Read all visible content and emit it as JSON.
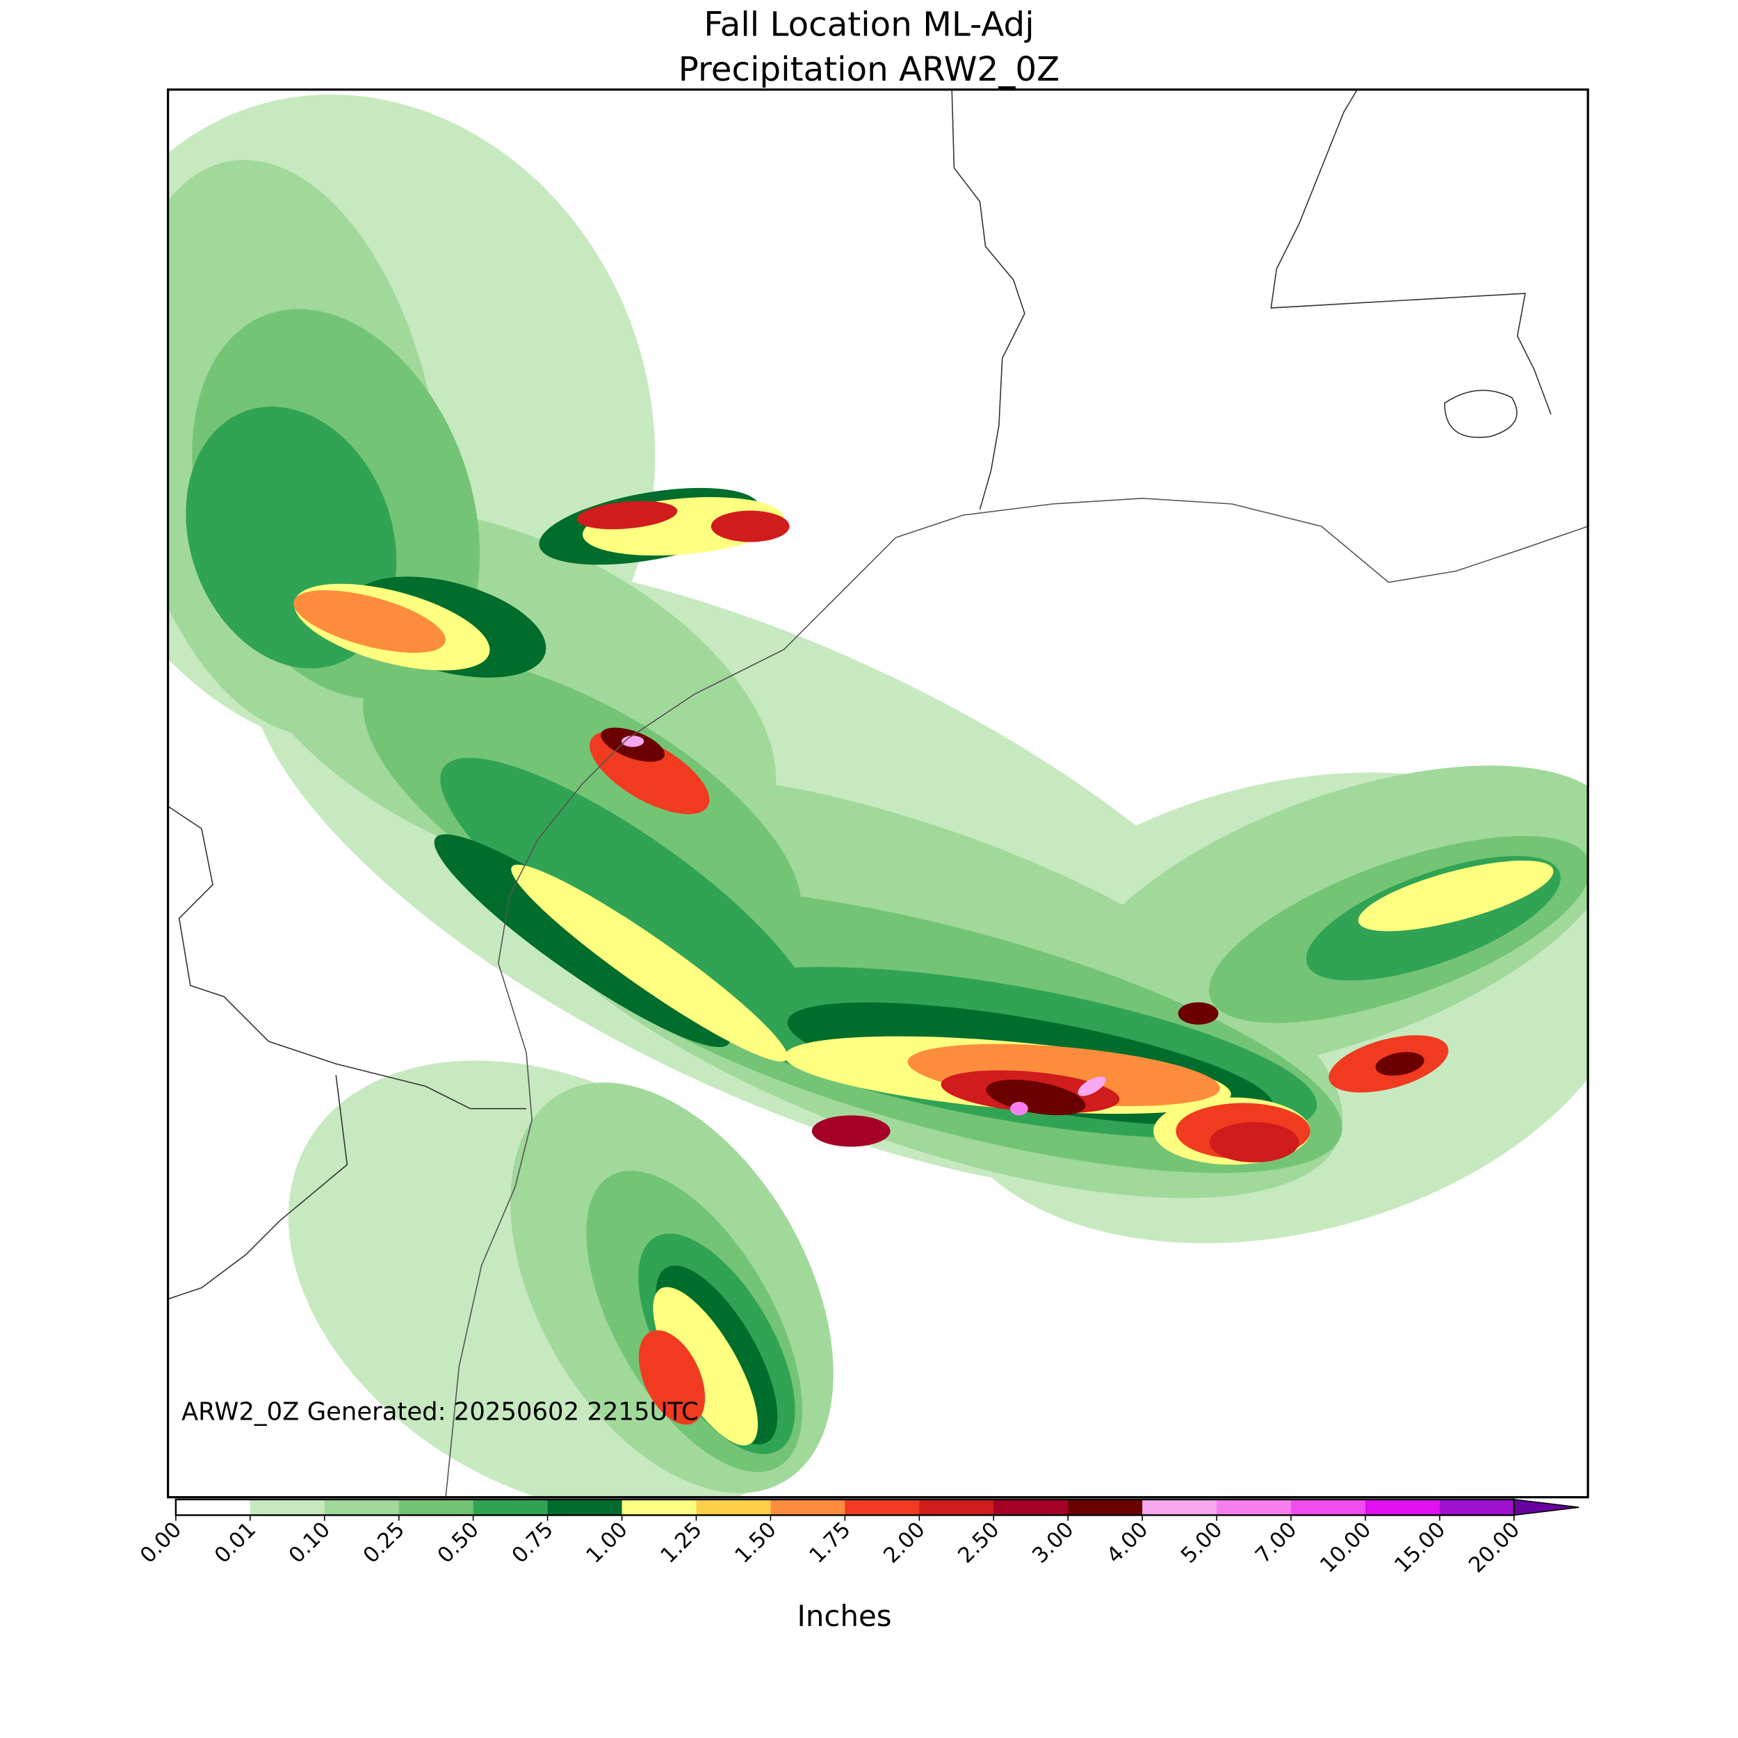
{
  "chart_data": {
    "type": "map",
    "title": "Fall Location ML-Adj",
    "subtitle": "Precipitation ARW2_0Z",
    "annotation": "ARW2_0Z Generated: 20250602 2215UTC",
    "colorbar": {
      "label": "Inches",
      "ticks": [
        {
          "value": 0,
          "label": "0.00"
        },
        {
          "value": 0.01,
          "label": "0.01"
        },
        {
          "value": 0.1,
          "label": "0.10"
        },
        {
          "value": 0.25,
          "label": "0.25"
        },
        {
          "value": 0.5,
          "label": "0.50"
        },
        {
          "value": 0.75,
          "label": "0.75"
        },
        {
          "value": 1,
          "label": "1.00"
        },
        {
          "value": 1.25,
          "label": "1.25"
        },
        {
          "value": 1.5,
          "label": "1.50"
        },
        {
          "value": 1.75,
          "label": "1.75"
        },
        {
          "value": 2,
          "label": "2.00"
        },
        {
          "value": 2.5,
          "label": "2.50"
        },
        {
          "value": 3,
          "label": "3.00"
        },
        {
          "value": 4,
          "label": "4.00"
        },
        {
          "value": 5,
          "label": "5.00"
        },
        {
          "value": 7,
          "label": "7.00"
        },
        {
          "value": 10,
          "label": "10.00"
        },
        {
          "value": 15,
          "label": "15.00"
        },
        {
          "value": 20,
          "label": "20.00"
        }
      ],
      "colors": [
        "#ffffff",
        "#c7e9c0",
        "#a1d99b",
        "#74c476",
        "#31a354",
        "#006d2c",
        "#ffff80",
        "#fdd049",
        "#fd8d3c",
        "#f03b20",
        "#d01c1c",
        "#a50026",
        "#6b0000",
        "#f7a8f0",
        "#f77ff0",
        "#f04cf0",
        "#e010f0",
        "#a010d0"
      ],
      "over_color": "#6a00a0"
    }
  }
}
